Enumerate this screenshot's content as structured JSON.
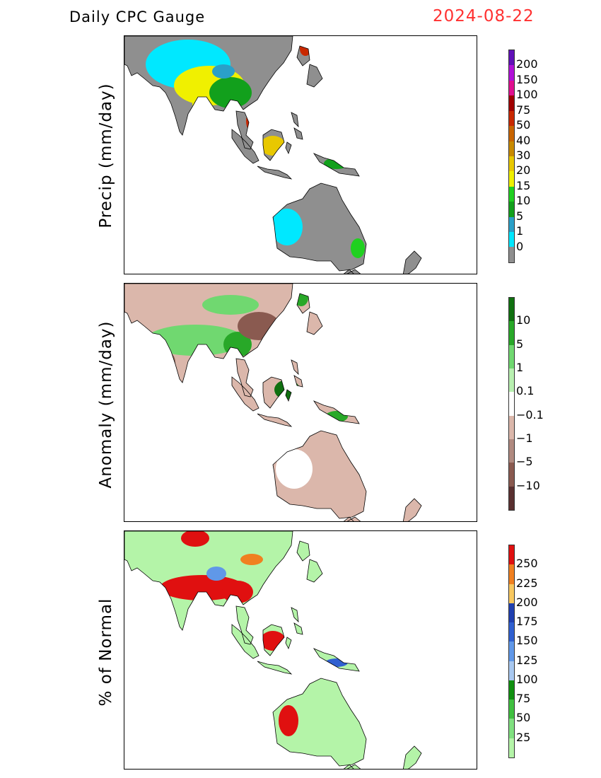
{
  "header": {
    "title": "Daily CPC Gauge",
    "date": "2024-08-22"
  },
  "panels": [
    {
      "ylabel": "Precip (mm/day)",
      "land_color": "#8f8f8f",
      "colorbar": {
        "colors": [
          "#8f8f8f",
          "#00e8ff",
          "#2aa0c8",
          "#12a01c",
          "#20d020",
          "#f0f000",
          "#e8c800",
          "#c88a00",
          "#c86400",
          "#c82800",
          "#a00000",
          "#e01090",
          "#b010d8",
          "#6010b8"
        ],
        "labels": [
          "0",
          "1",
          "5",
          "10",
          "15",
          "20",
          "30",
          "40",
          "50",
          "75",
          "100",
          "150",
          "200"
        ]
      }
    },
    {
      "ylabel": "Anomaly (mm/day)",
      "land_color": "#dbb7ab",
      "colorbar": {
        "colors": [
          "#5a3030",
          "#8a5a50",
          "#b08a80",
          "#dbb7ab",
          "#ffffff",
          "#b8f0b0",
          "#70d870",
          "#28a828",
          "#107010"
        ],
        "labels": [
          "−10",
          "−5",
          "−1",
          "−0.1",
          "0.1",
          "1",
          "5",
          "10"
        ]
      }
    },
    {
      "ylabel": "% of Normal",
      "land_color": "#b4f4a8",
      "colorbar": {
        "colors": [
          "#b4f4a8",
          "#80e080",
          "#40c040",
          "#109010",
          "#a8c8f0",
          "#6098e8",
          "#3060d0",
          "#2040b0",
          "#f8c860",
          "#f08020",
          "#e01010"
        ],
        "labels": [
          "25",
          "50",
          "75",
          "100",
          "125",
          "150",
          "175",
          "200",
          "225",
          "250"
        ]
      }
    }
  ]
}
